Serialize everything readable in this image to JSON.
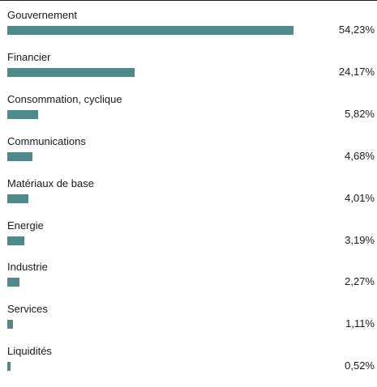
{
  "chart_data": {
    "type": "bar",
    "orientation": "horizontal",
    "bar_color": "#4f8a8b",
    "title": "",
    "categories": [
      "Gouvernement",
      "Financier",
      "Consommation, cyclique",
      "Communications",
      "Matériaux de base",
      "Energie",
      "Industrie",
      "Services",
      "Liquidités"
    ],
    "values": [
      54.23,
      24.17,
      5.82,
      4.68,
      4.01,
      3.19,
      2.27,
      1.11,
      0.52
    ],
    "value_labels": [
      "54,23%",
      "24,17%",
      "5,82%",
      "4,68%",
      "4,01%",
      "3,19%",
      "2,27%",
      "1,11%",
      "0,52%"
    ],
    "unit": "%",
    "grid": false,
    "legend": "none"
  }
}
